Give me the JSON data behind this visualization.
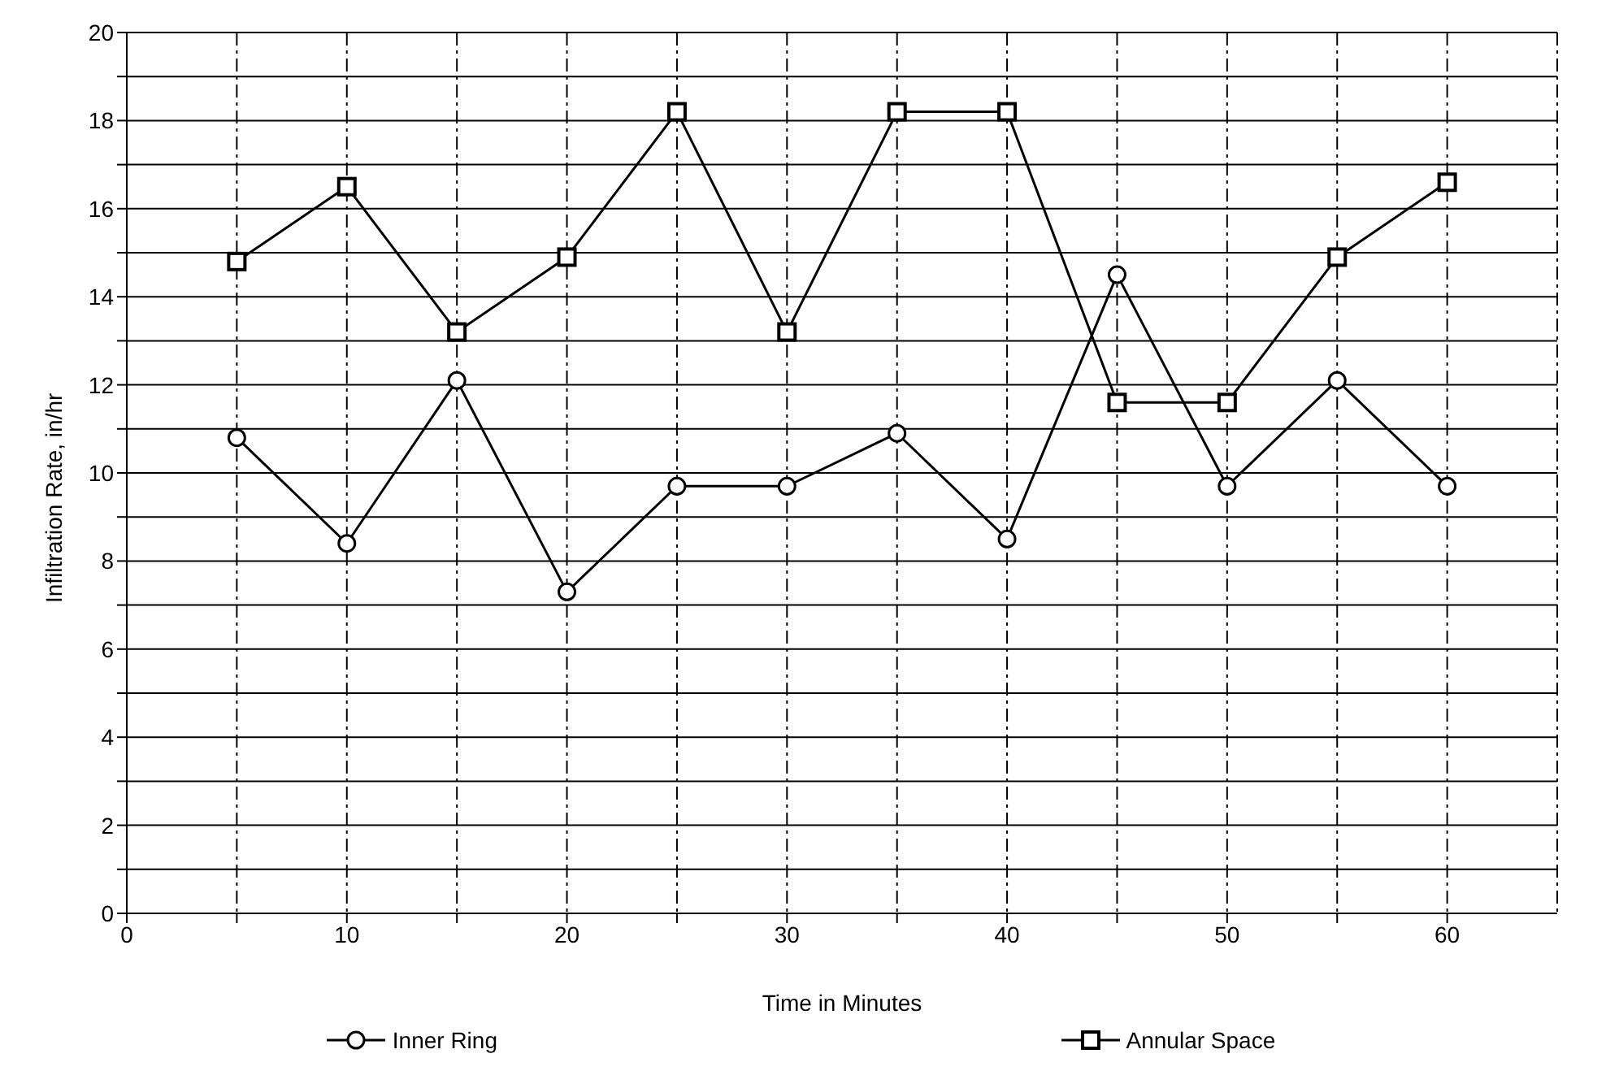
{
  "chart_data": {
    "type": "line",
    "xlabel": "Time in Minutes",
    "ylabel": "Infiltration Rate, in/hr",
    "x": [
      5,
      10,
      15,
      20,
      25,
      30,
      35,
      40,
      45,
      50,
      55,
      60
    ],
    "series": [
      {
        "name": "Inner Ring",
        "color": "#000000",
        "marker": "circle",
        "values": [
          10.8,
          8.4,
          12.1,
          7.3,
          9.7,
          9.7,
          10.9,
          8.5,
          14.5,
          9.7,
          12.1,
          9.7
        ]
      },
      {
        "name": "Annular Space",
        "color": "#000000",
        "marker": "square",
        "values": [
          14.8,
          16.5,
          13.2,
          14.9,
          18.2,
          13.2,
          18.2,
          18.2,
          11.6,
          11.6,
          14.9,
          16.6
        ]
      }
    ],
    "xlim": [
      0,
      65
    ],
    "xticks": [
      0,
      {
        "value": 5,
        "label": null
      },
      10,
      {
        "value": 15,
        "label": null
      },
      20,
      {
        "value": 25,
        "label": null
      },
      30,
      {
        "value": 35,
        "label": null
      },
      40,
      {
        "value": 45,
        "label": null
      },
      50,
      {
        "value": 55,
        "label": null
      },
      60
    ],
    "ylim": [
      0,
      20
    ],
    "yticks": [
      0,
      {
        "value": 1,
        "label": null
      },
      2,
      {
        "value": 3,
        "label": null
      },
      4,
      {
        "value": 5,
        "label": null
      },
      6,
      {
        "value": 7,
        "label": null
      },
      8,
      {
        "value": 9,
        "label": null
      },
      10,
      {
        "value": 11,
        "label": null
      },
      12,
      {
        "value": 13,
        "label": null
      },
      14,
      {
        "value": 15,
        "label": null
      },
      16,
      {
        "value": 17,
        "label": null
      },
      18,
      {
        "value": 19,
        "label": null
      },
      20
    ],
    "grid": true,
    "legend": "bottom",
    "line_style": "solid"
  }
}
